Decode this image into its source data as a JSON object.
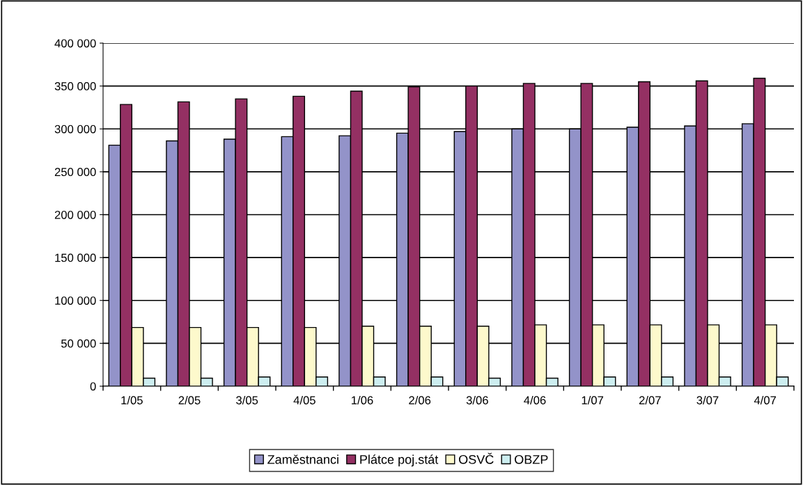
{
  "chart_data": {
    "type": "bar",
    "categories": [
      "1/05",
      "2/05",
      "3/05",
      "4/05",
      "1/06",
      "2/06",
      "3/06",
      "4/06",
      "1/07",
      "2/07",
      "3/07",
      "4/07"
    ],
    "series": [
      {
        "name": "Zaměstnanci",
        "color": "#9393c9",
        "values": [
          281000,
          286000,
          288000,
          291000,
          292000,
          295000,
          297000,
          300000,
          300000,
          302000,
          303500,
          306000
        ]
      },
      {
        "name": "Plátce poj.stát",
        "color": "#943063",
        "values": [
          328500,
          331500,
          335000,
          338000,
          344000,
          349000,
          350000,
          353000,
          353000,
          355000,
          356000,
          359000
        ]
      },
      {
        "name": "OSVČ",
        "color": "#fdf9cc",
        "values": [
          68500,
          68500,
          68500,
          68500,
          70000,
          70000,
          70000,
          71500,
          71500,
          71500,
          71500,
          71500
        ]
      },
      {
        "name": "OBZP",
        "color": "#cdeef0",
        "values": [
          9300,
          9300,
          10800,
          10800,
          10800,
          10800,
          9300,
          9300,
          10800,
          10800,
          10800,
          10800
        ]
      }
    ],
    "ylim": [
      0,
      400000
    ],
    "yticks": [
      {
        "value": 0,
        "label": "0"
      },
      {
        "value": 50000,
        "label": "50 000"
      },
      {
        "value": 100000,
        "label": "100 000"
      },
      {
        "value": 150000,
        "label": "150 000"
      },
      {
        "value": 200000,
        "label": "200 000"
      },
      {
        "value": 250000,
        "label": "250 000"
      },
      {
        "value": 300000,
        "label": "300 000"
      },
      {
        "value": 350000,
        "label": "350 000"
      },
      {
        "value": 400000,
        "label": "400 000"
      }
    ],
    "grid": "y",
    "legend": "bottom"
  }
}
